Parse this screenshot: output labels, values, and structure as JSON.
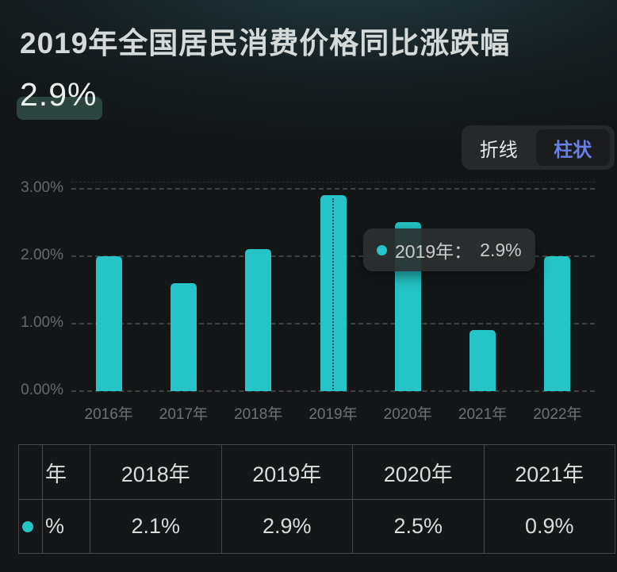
{
  "header": {
    "title": "2019年全国居民消费价格同比涨跌幅",
    "highlight_value": "2.9%"
  },
  "toggle": {
    "line_label": "折线",
    "bar_label": "柱状",
    "active": "柱状",
    "active_color": "#6a7ee6"
  },
  "chart_data": {
    "type": "bar",
    "title": "2019年全国居民消费价格同比涨跌幅",
    "categories": [
      "2016年",
      "2017年",
      "2018年",
      "2019年",
      "2020年",
      "2021年",
      "2022年"
    ],
    "values": [
      2.0,
      1.6,
      2.1,
      2.9,
      2.5,
      0.9,
      2.0
    ],
    "unit": "%",
    "ylim": [
      0,
      3
    ],
    "yticks": [
      {
        "label": "3.00%",
        "value": 3
      },
      {
        "label": "2.00%",
        "value": 2
      },
      {
        "label": "1.00%",
        "value": 1
      },
      {
        "label": "0.00%",
        "value": 0
      }
    ],
    "grid": true,
    "legend_position": "none",
    "bar_color": "#25c4c6",
    "highlighted_index": 3,
    "tooltip": {
      "label": "2019年：",
      "value": "2.9%"
    }
  },
  "table": {
    "header_cells": [
      "",
      "年",
      "2018年",
      "2019年",
      "2020年",
      "2021年"
    ],
    "data_cells": [
      "dot",
      "%",
      "2.1%",
      "2.9%",
      "2.5%",
      "0.9%"
    ]
  }
}
